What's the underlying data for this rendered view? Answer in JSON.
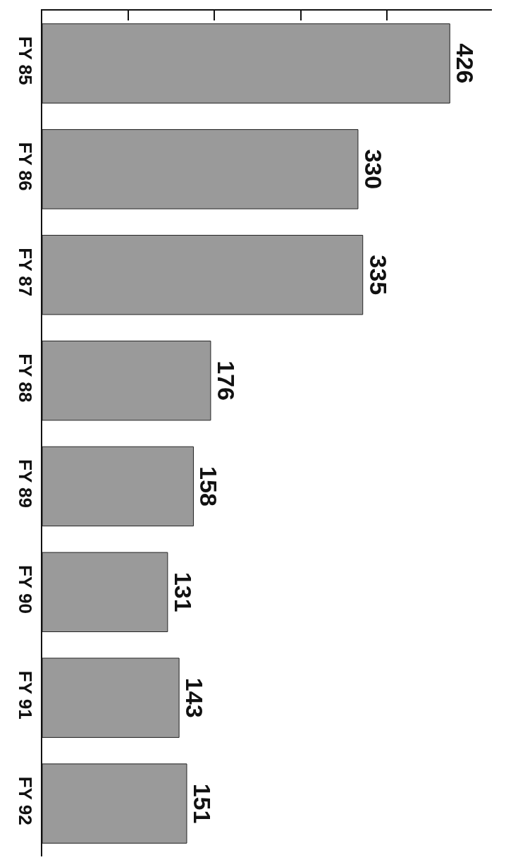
{
  "chart_data": {
    "type": "bar",
    "orientation": "horizontal",
    "categories": [
      "FY 85",
      "FY 86",
      "FY 87",
      "FY 88",
      "FY 89",
      "FY 90",
      "FY 91",
      "FY 92"
    ],
    "values": [
      426,
      330,
      335,
      176,
      158,
      131,
      143,
      151
    ],
    "color": "#9a9a9a",
    "data_labels": true,
    "xlim": [
      0,
      470
    ],
    "xticks": [
      {
        "value": 90,
        "label": null
      },
      {
        "value": 180,
        "label": null
      },
      {
        "value": 270,
        "label": null
      },
      {
        "value": 360,
        "label": null
      }
    ],
    "tick_labels": "y"
  }
}
